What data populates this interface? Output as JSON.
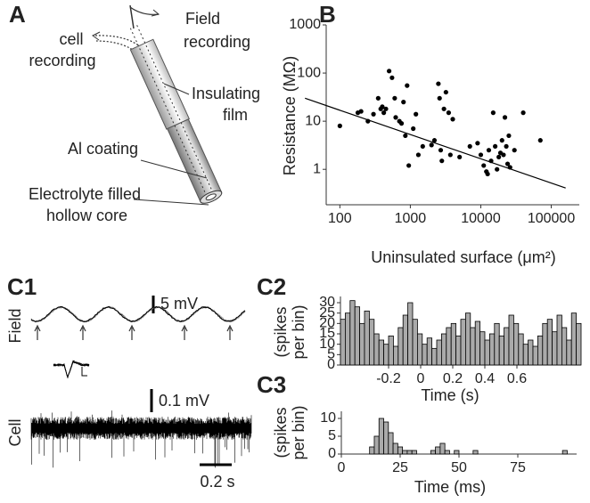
{
  "panel_labels": [
    "A",
    "B",
    "C1",
    "C2",
    "C3"
  ],
  "diagram": {
    "labels": [
      [
        "cell",
        "recording"
      ],
      [
        "Field",
        "recording"
      ],
      [
        "Insulating",
        "film"
      ],
      [
        "Al coating"
      ],
      [
        "Electrolyte filled",
        "hollow core"
      ]
    ]
  },
  "traces": {
    "labels": [
      "Field",
      "Cell"
    ],
    "scale_bars": [
      "5 mV",
      "0.1 mV",
      "0.2 s"
    ]
  },
  "chart_data": [
    {
      "type": "scatter",
      "x_label": "Uninsulated surface (μm²)",
      "y_label": "Resistance (MΩ)",
      "log_x": true,
      "log_y": true,
      "xlim": [
        30,
        250000
      ],
      "ylim": [
        0.2,
        1000
      ],
      "xticks": [
        100,
        1000,
        10000,
        100000
      ],
      "yticks": [
        1,
        10,
        100,
        1000
      ],
      "color": "#000000",
      "x": [
        100,
        180,
        200,
        250,
        300,
        350,
        380,
        400,
        420,
        450,
        500,
        550,
        600,
        620,
        700,
        750,
        800,
        850,
        900,
        950,
        1100,
        1200,
        1300,
        1500,
        2000,
        2200,
        2500,
        2600,
        2700,
        2800,
        3000,
        3200,
        3500,
        3700,
        4000,
        5000,
        7000,
        9000,
        10000,
        11000,
        12000,
        12500,
        13000,
        14000,
        15000,
        16000,
        17000,
        18000,
        19000,
        20000,
        21000,
        22000,
        23000,
        24000,
        25000,
        26000,
        30000,
        40000,
        70000
      ],
      "values": [
        8,
        15,
        16,
        10,
        14,
        30,
        18,
        20,
        15,
        18,
        110,
        80,
        30,
        12,
        10,
        9,
        25,
        5,
        55,
        1.2,
        7,
        14,
        2,
        3,
        3.2,
        4,
        60,
        30,
        2.5,
        1.5,
        18,
        40,
        15,
        2,
        11,
        1.8,
        3,
        3.5,
        2,
        1.2,
        0.9,
        0.8,
        2.5,
        1.5,
        15,
        3,
        1,
        1.8,
        2.2,
        4,
        2,
        12,
        3,
        1.3,
        5,
        1.1,
        2.5,
        15,
        4
      ],
      "fit": {
        "x": [
          32,
          160000
        ],
        "values": [
          30,
          0.41
        ]
      }
    },
    {
      "type": "histogram",
      "x_label": "Time (s)",
      "y_label": [
        "(spikes",
        "per bin)"
      ],
      "color": "#aaaaaa",
      "xlim": [
        -0.5,
        1.0
      ],
      "ylim": [
        0,
        33
      ],
      "xticks": [
        -0.2,
        0,
        0.2,
        0.4,
        0.6
      ],
      "yticks": [
        0,
        5,
        10,
        15,
        20,
        25,
        30
      ],
      "bins": [
        -0.5,
        -0.47,
        -0.44,
        -0.41,
        -0.38,
        -0.35,
        -0.32,
        -0.29,
        -0.26,
        -0.23,
        -0.2,
        -0.17,
        -0.14,
        -0.11,
        -0.08,
        -0.05,
        -0.02,
        0.01,
        0.04,
        0.07,
        0.1,
        0.13,
        0.16,
        0.19,
        0.22,
        0.25,
        0.28,
        0.31,
        0.34,
        0.37,
        0.4,
        0.43,
        0.46,
        0.49,
        0.52,
        0.55,
        0.58,
        0.61,
        0.64,
        0.67,
        0.7,
        0.73,
        0.76,
        0.79,
        0.82,
        0.85,
        0.88,
        0.91,
        0.94,
        0.97,
        1.0
      ],
      "counts": [
        22,
        25,
        31,
        28,
        20,
        26,
        22,
        15,
        12,
        10,
        14,
        9,
        18,
        24,
        30,
        22,
        15,
        10,
        13,
        8,
        12,
        15,
        18,
        20,
        14,
        22,
        25,
        18,
        21,
        16,
        12,
        15,
        20,
        14,
        18,
        24,
        20,
        15,
        10,
        12,
        9,
        14,
        20,
        22,
        16,
        24,
        18,
        12,
        25,
        20
      ]
    },
    {
      "type": "histogram",
      "x_label": "Time (ms)",
      "y_label": [
        "(spikes",
        "per bin)"
      ],
      "color": "#aaaaaa",
      "xlim": [
        0,
        100
      ],
      "ylim": [
        0,
        12
      ],
      "xticks": [
        0,
        25,
        50,
        75
      ],
      "yticks": [
        0,
        5,
        10
      ],
      "bins": [
        0,
        2,
        4,
        6,
        8,
        10,
        12,
        14,
        16,
        18,
        20,
        22,
        24,
        26,
        28,
        30,
        32,
        34,
        36,
        38,
        40,
        42,
        44,
        46,
        48,
        50,
        52,
        54,
        56,
        58,
        60,
        62,
        64,
        66,
        68,
        70,
        72,
        74,
        76,
        78,
        80,
        82,
        84,
        86,
        88,
        90,
        92,
        94,
        96,
        98,
        100
      ],
      "counts": [
        0,
        0,
        0,
        0,
        0,
        0,
        2,
        5,
        10,
        9,
        6,
        3,
        2,
        1,
        1,
        1,
        0,
        0,
        0,
        1,
        2,
        3,
        1,
        0,
        1,
        0,
        0,
        0,
        1,
        0,
        0,
        0,
        0,
        0,
        0,
        0,
        0,
        0,
        0,
        0,
        0,
        0,
        0,
        0,
        0,
        0,
        0,
        1,
        0,
        0
      ]
    }
  ]
}
